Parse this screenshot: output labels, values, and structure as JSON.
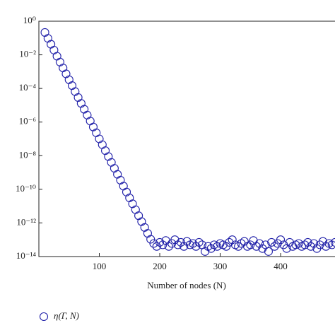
{
  "chart_data": {
    "type": "scatter",
    "xlabel": "Number of nodes (N)",
    "log_y": true,
    "xlim": [
      0,
      490
    ],
    "ylim": [
      1e-14,
      1
    ],
    "xticks": [
      100,
      200,
      300,
      400
    ],
    "yticks": [
      {
        "value": 1,
        "label": "10⁰"
      },
      {
        "value": 0.01,
        "label": "10⁻²"
      },
      {
        "value": 0.0001,
        "label": "10⁻⁴"
      },
      {
        "value": 1e-06,
        "label": "10⁻⁶"
      },
      {
        "value": 1e-08,
        "label": "10⁻⁸"
      },
      {
        "value": 1e-10,
        "label": "10⁻¹⁰"
      },
      {
        "value": 1e-12,
        "label": "10⁻¹²"
      },
      {
        "value": 1e-14,
        "label": "10⁻¹⁴"
      }
    ],
    "legend": "bottom-left",
    "series": [
      {
        "name": "η(Γ, N)",
        "color": "#1f1fa8",
        "x": [
          10,
          15,
          20,
          25,
          30,
          35,
          40,
          45,
          50,
          55,
          60,
          65,
          70,
          75,
          80,
          85,
          90,
          95,
          100,
          105,
          110,
          115,
          120,
          125,
          130,
          135,
          140,
          145,
          150,
          155,
          160,
          165,
          170,
          175,
          180,
          185,
          190,
          195,
          200,
          205,
          210,
          215,
          220,
          225,
          230,
          235,
          240,
          245,
          250,
          255,
          260,
          265,
          270,
          275,
          280,
          285,
          290,
          295,
          300,
          305,
          310,
          315,
          320,
          325,
          330,
          335,
          340,
          345,
          350,
          355,
          360,
          365,
          370,
          375,
          380,
          385,
          390,
          395,
          400,
          405,
          410,
          415,
          420,
          425,
          430,
          435,
          440,
          445,
          450,
          455,
          460,
          465,
          470,
          475,
          480,
          485,
          490
        ],
        "values": [
          0.214,
          0.0955,
          0.0427,
          0.0191,
          0.0083,
          0.0037,
          0.00166,
          0.00074,
          0.00033,
          0.000148,
          6.5e-05,
          2.9e-05,
          1.29e-05,
          5.8e-06,
          2.6e-06,
          1.15e-06,
          5.1e-07,
          2.3e-07,
          1e-07,
          4.5e-08,
          2e-08,
          8.9e-09,
          4e-09,
          1.78e-09,
          7.8e-10,
          3.5e-10,
          1.55e-10,
          6.9e-11,
          3.1e-11,
          1.38e-11,
          6.1e-12,
          2.7e-12,
          1.2e-12,
          5.4e-13,
          2.4e-13,
          1.07e-13,
          6e-14,
          4e-14,
          7e-14,
          5e-14,
          9e-14,
          4e-14,
          6e-14,
          1e-13,
          5e-14,
          7e-14,
          4e-14,
          8e-14,
          5e-14,
          6e-14,
          4e-14,
          7e-14,
          5e-14,
          2e-14,
          4e-14,
          3e-14,
          5e-14,
          4e-14,
          6e-14,
          5e-14,
          4e-14,
          7e-14,
          1e-13,
          5e-14,
          4e-14,
          6e-14,
          8e-14,
          4e-14,
          5e-14,
          9e-14,
          4e-14,
          6e-14,
          3e-14,
          5e-14,
          2e-14,
          7e-14,
          4e-14,
          6e-14,
          1e-13,
          5e-14,
          3e-14,
          7e-14,
          4e-14,
          5e-14,
          6e-14,
          4e-14,
          5e-14,
          7e-14,
          4e-14,
          6e-14,
          3e-14,
          5e-14,
          8e-14,
          4e-14,
          6e-14,
          5e-14,
          7e-14
        ]
      }
    ]
  }
}
